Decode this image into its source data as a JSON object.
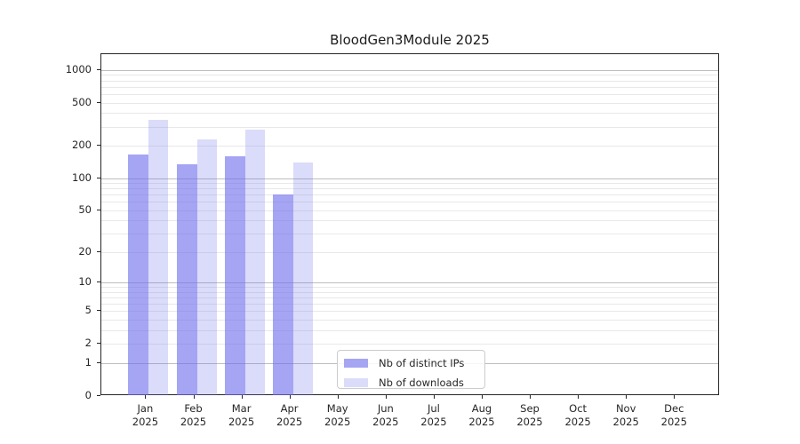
{
  "chart_data": {
    "type": "bar",
    "title": "BloodGen3Module 2025",
    "xlabel": "",
    "ylabel": "",
    "scale": "log1p",
    "categories": [
      "Jan",
      "Feb",
      "Mar",
      "Apr",
      "May",
      "Jun",
      "Jul",
      "Aug",
      "Sep",
      "Oct",
      "Nov",
      "Dec"
    ],
    "x_year": "2025",
    "series": [
      {
        "name": "Nb of distinct IPs",
        "color": "rgba(110,110,235,0.62)",
        "legend_color": "#a5a5f4",
        "values": [
          165,
          135,
          160,
          70,
          0,
          0,
          0,
          0,
          0,
          0,
          0,
          0
        ]
      },
      {
        "name": "Nb of downloads",
        "color": "rgba(110,110,235,0.25)",
        "legend_color": "#dbdbfa",
        "values": [
          350,
          230,
          280,
          140,
          0,
          0,
          0,
          0,
          0,
          0,
          0,
          0
        ]
      }
    ],
    "yticks": [
      0,
      1,
      2,
      5,
      10,
      20,
      50,
      100,
      200,
      500,
      1000
    ],
    "ylim": [
      0,
      1400
    ],
    "grid": {
      "on": true,
      "major_values": [
        1,
        10,
        100,
        1000
      ],
      "minor_values": [
        2,
        3,
        4,
        5,
        6,
        7,
        8,
        9,
        20,
        30,
        40,
        50,
        60,
        70,
        80,
        90,
        200,
        300,
        400,
        500,
        600,
        700,
        800,
        900
      ],
      "major_color": "#bdbdbd",
      "minor_color": "#e8e8e8"
    },
    "legend_position": "lower center-left",
    "axis_color": "#262626"
  }
}
